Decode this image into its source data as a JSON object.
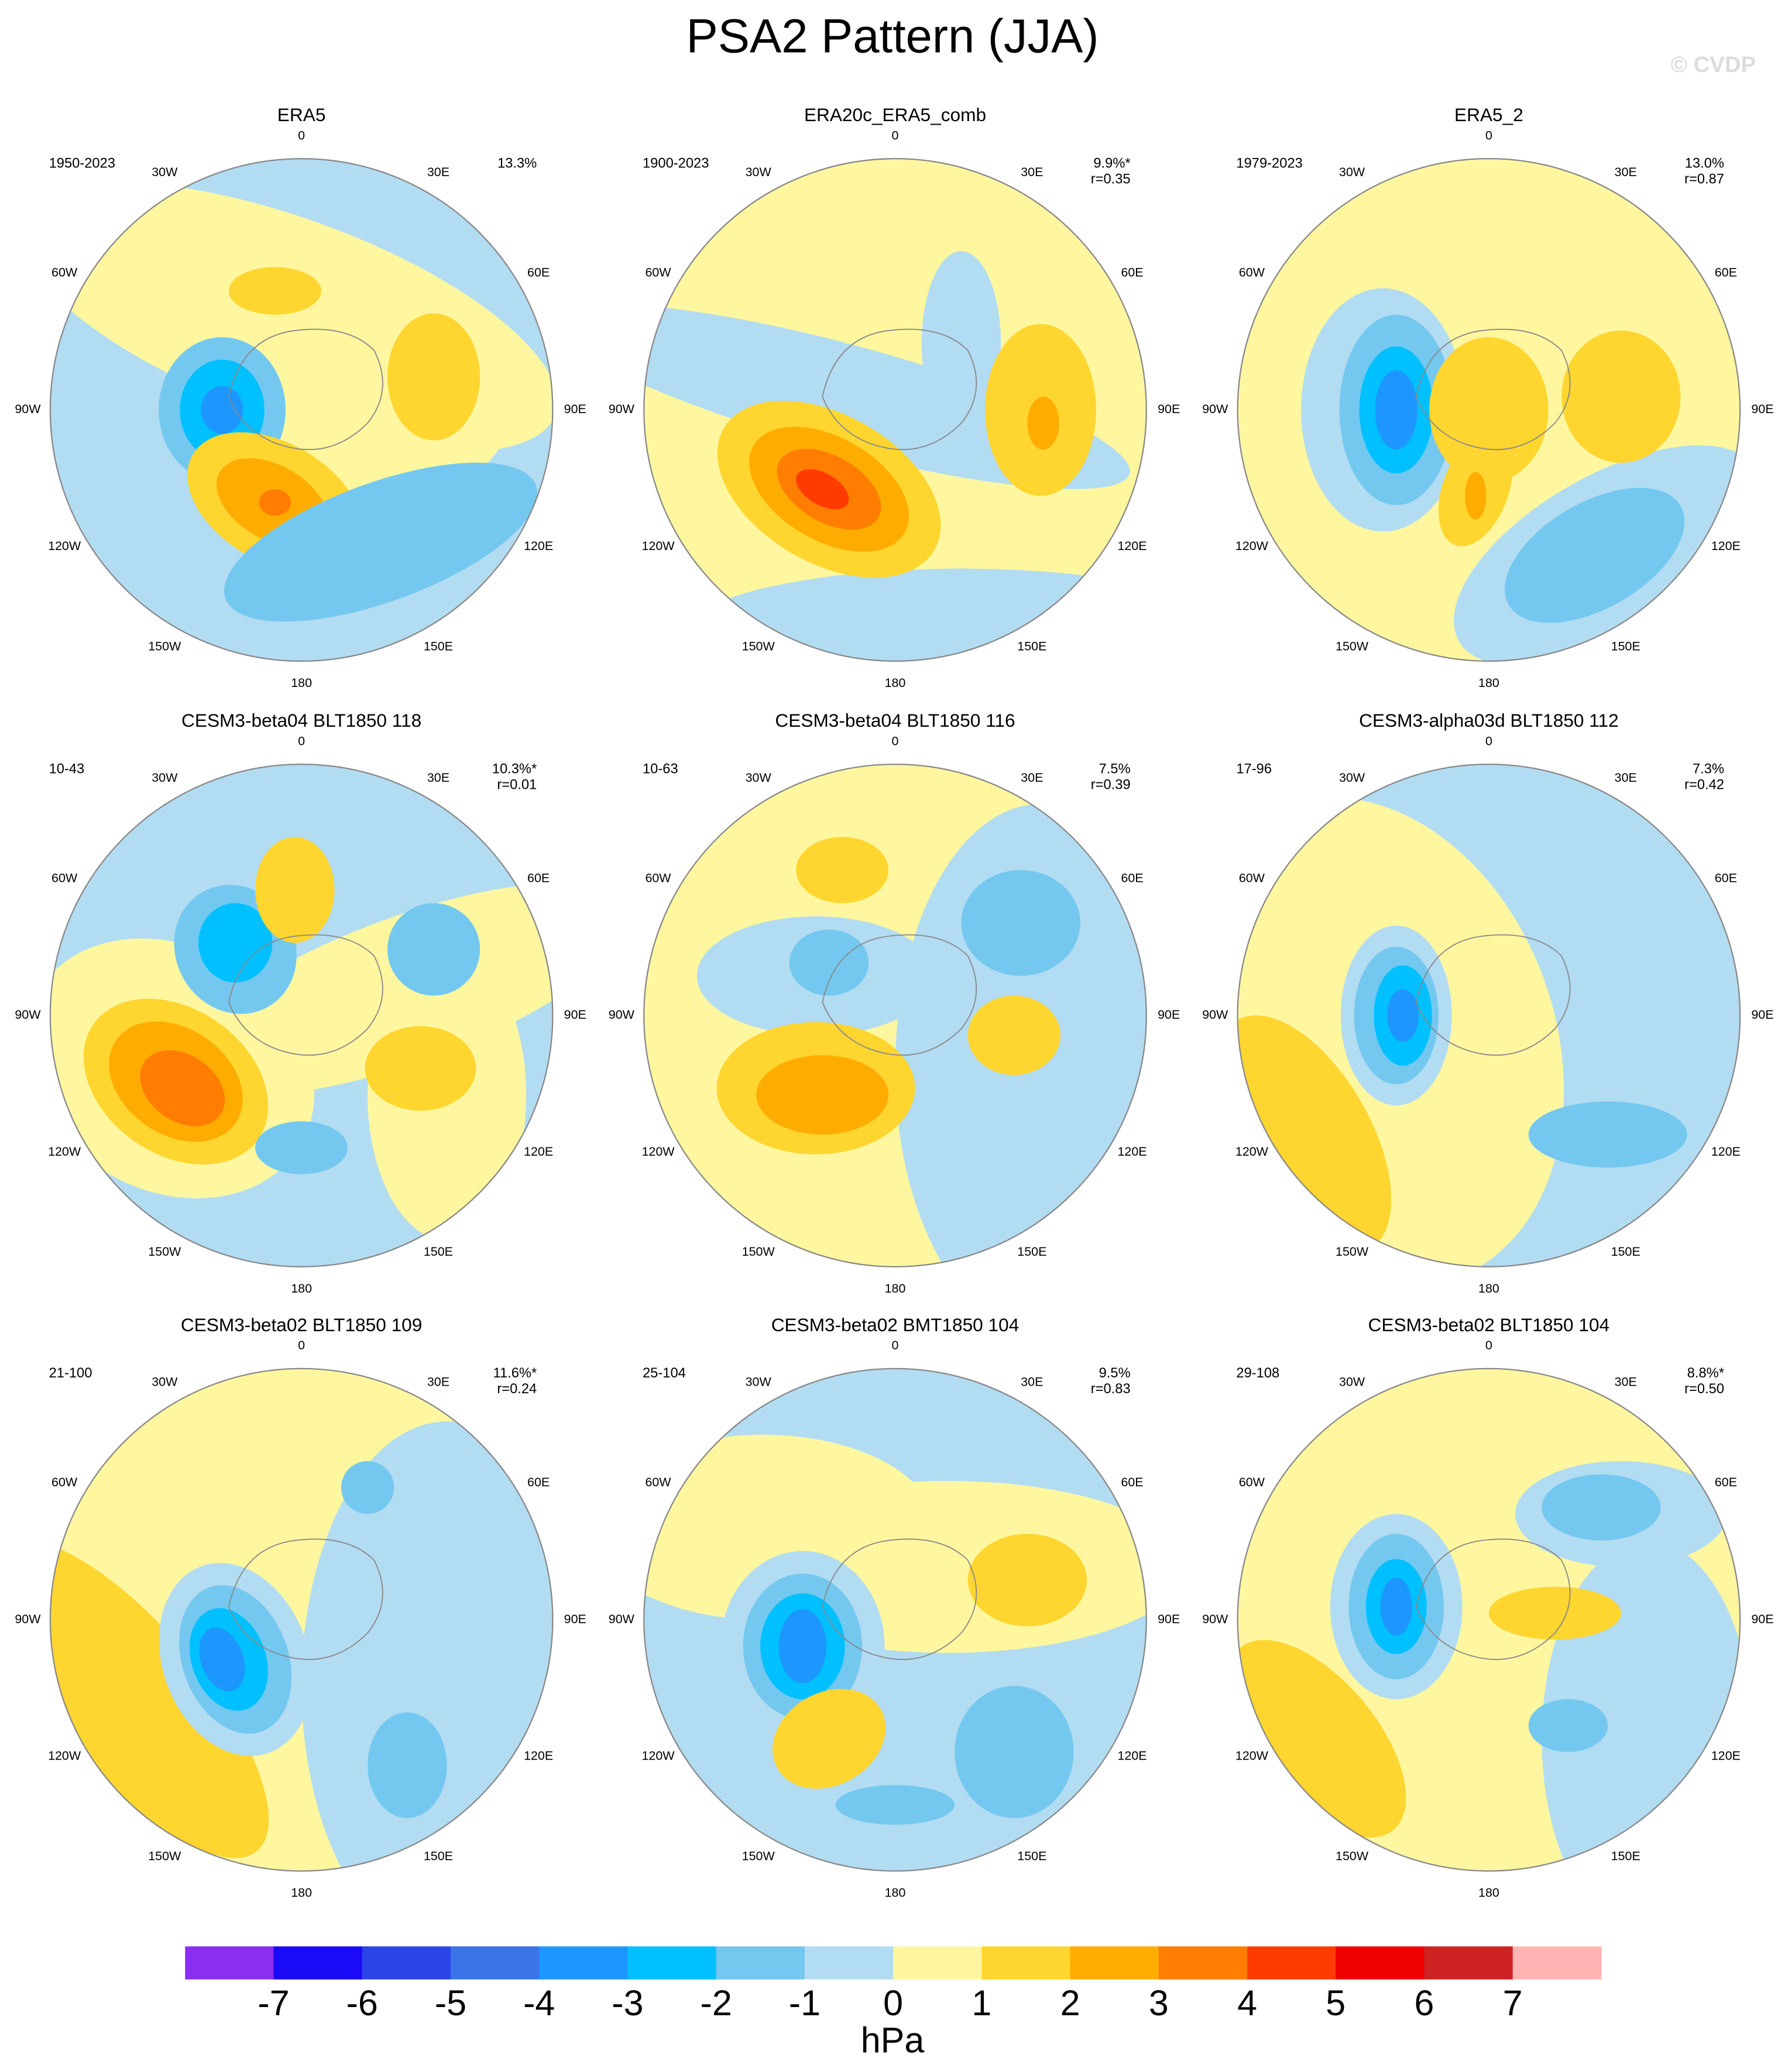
{
  "title": "PSA2 Pattern (JJA)",
  "watermark": "© CVDP",
  "longitude_labels": [
    "0",
    "30E",
    "60E",
    "90E",
    "120E",
    "150E",
    "180",
    "150W",
    "120W",
    "90W",
    "60W",
    "30W"
  ],
  "panels": [
    {
      "title": "ERA5",
      "period": "1950-2023",
      "percent": "13.3%"
    },
    {
      "title": "ERA20c_ERA5_comb",
      "period": "1900-2023",
      "percent": "9.9%*",
      "correlation": "r=0.35"
    },
    {
      "title": "ERA5_2",
      "period": "1979-2023",
      "percent": "13.0%",
      "correlation": "r=0.87"
    },
    {
      "title": "CESM3-beta04 BLT1850 118",
      "period": "10-43",
      "percent": "10.3%*",
      "correlation": "r=0.01"
    },
    {
      "title": "CESM3-beta04 BLT1850 116",
      "period": "10-63",
      "percent": "7.5%",
      "correlation": "r=0.39"
    },
    {
      "title": "CESM3-alpha03d BLT1850 112",
      "period": "17-96",
      "percent": "7.3%",
      "correlation": "r=0.42"
    },
    {
      "title": "CESM3-beta02 BLT1850 109",
      "period": "21-100",
      "percent": "11.6%*",
      "correlation": "r=0.24"
    },
    {
      "title": "CESM3-beta02 BMT1850 104",
      "period": "25-104",
      "percent": "9.5%",
      "correlation": "r=0.83"
    },
    {
      "title": "CESM3-beta02 BLT1850 104",
      "period": "29-108",
      "percent": "8.8%*",
      "correlation": "r=0.50"
    }
  ],
  "colorbar": {
    "levels": [
      -7,
      -6,
      -5,
      -4,
      -3,
      -2,
      -1,
      0,
      1,
      2,
      3,
      4,
      5,
      6,
      7
    ],
    "colors": [
      "#8a2ef0",
      "#1a0af5",
      "#2a44e8",
      "#3a74e6",
      "#1e96ff",
      "#00c0ff",
      "#74c8f0",
      "#b2dcf2",
      "#fff7a0",
      "#ffd530",
      "#ffac00",
      "#ff7d00",
      "#ff3c00",
      "#ee0000",
      "#cc2222",
      "#ffb4b4"
    ],
    "unit": "hPa"
  }
}
